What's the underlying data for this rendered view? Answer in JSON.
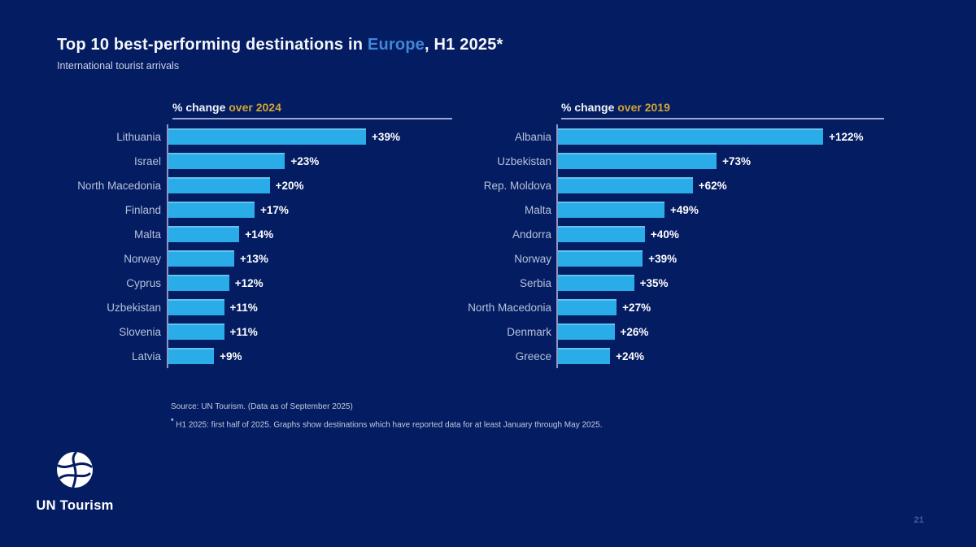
{
  "header": {
    "title_prefix": "Top 10 best-performing destinations in ",
    "title_highlight": "Europe",
    "title_suffix": ", H1 2025*",
    "subtitle": "International tourist arrivals"
  },
  "chart_data": [
    {
      "type": "bar",
      "orientation": "horizontal",
      "title_plain": "% change ",
      "title_accent": "over 2024",
      "categories": [
        "Lithuania",
        "Israel",
        "North Macedonia",
        "Finland",
        "Malta",
        "Norway",
        "Cyprus",
        "Uzbekistan",
        "Slovenia",
        "Latvia"
      ],
      "values": [
        39,
        23,
        20,
        17,
        14,
        13,
        12,
        11,
        11,
        9
      ],
      "value_labels": [
        "+39%",
        "+23%",
        "+20%",
        "+17%",
        "+14%",
        "+13%",
        "+12%",
        "+11%",
        "+11%",
        "+9%"
      ],
      "xlim": [
        0,
        56
      ],
      "grid": false,
      "legend": "none",
      "bar_color": "#29ace8"
    },
    {
      "type": "bar",
      "orientation": "horizontal",
      "title_plain": "% change ",
      "title_accent": "over 2019",
      "categories": [
        "Albania",
        "Uzbekistan",
        "Rep. Moldova",
        "Malta",
        "Andorra",
        "Norway",
        "Serbia",
        "North Macedonia",
        "Denmark",
        "Greece"
      ],
      "values": [
        122,
        73,
        62,
        49,
        40,
        39,
        35,
        27,
        26,
        24
      ],
      "value_labels": [
        "+122%",
        "+73%",
        "+62%",
        "+49%",
        "+40%",
        "+39%",
        "+35%",
        "+27%",
        "+26%",
        "+24%"
      ],
      "xlim": [
        0,
        150
      ],
      "grid": false,
      "legend": "none",
      "bar_color": "#29ace8"
    }
  ],
  "footnotes": {
    "source": "Source: UN Tourism. (Data as of September 2025)",
    "footnote_marker": "*",
    "footnote_text": " H1 2025: first half of 2025. Graphs show destinations which have reported data for at least January through May 2025."
  },
  "branding": {
    "logo_text": "UN Tourism"
  },
  "page_number": "21",
  "colors": {
    "background": "#041c62",
    "bar": "#29ace8",
    "accent_gold": "#d3a433",
    "accent_blue": "#4187d7",
    "label": "#b6c2da",
    "rule": "#9aa7cf"
  }
}
